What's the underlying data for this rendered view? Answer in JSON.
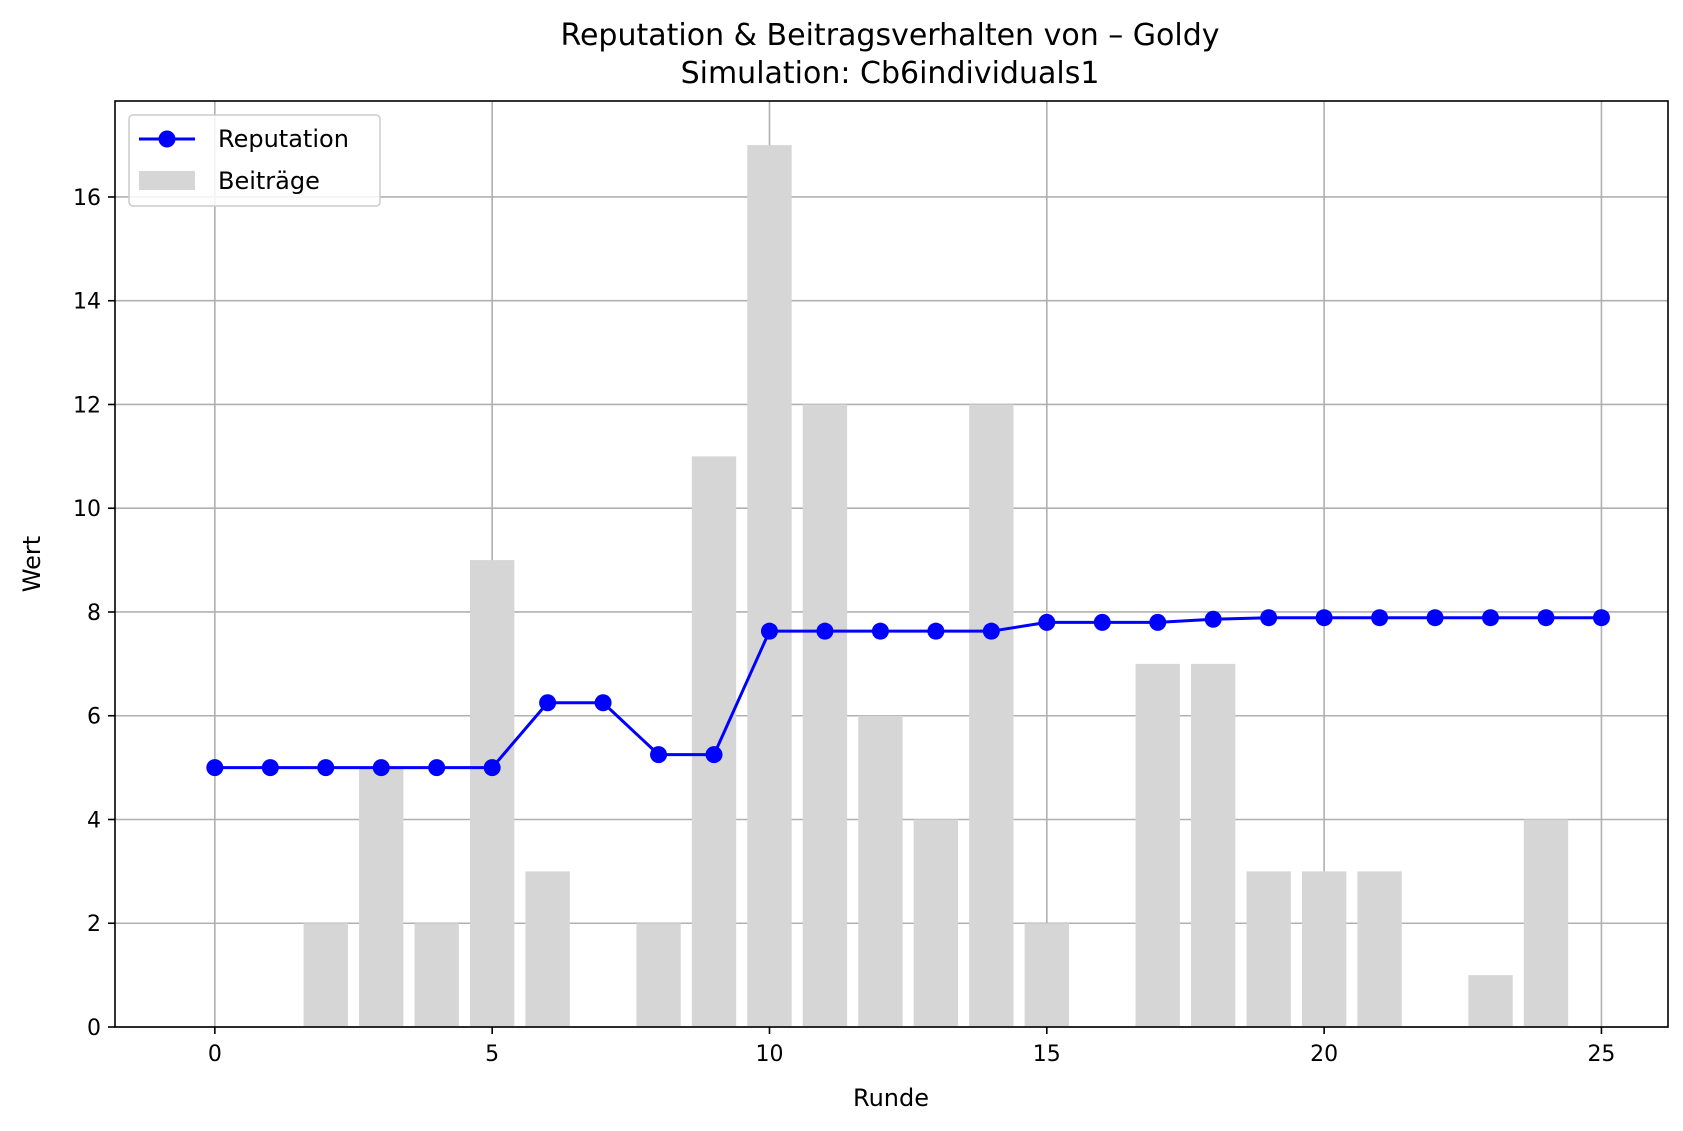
{
  "chart_data": {
    "type": "bar+line",
    "title": "Reputation & Beitragsverhalten von – Goldy",
    "subtitle": "Simulation: Cb6individuals1",
    "xlabel": "Runde",
    "ylabel": "Wert",
    "xlim": [
      -1.8,
      26.2
    ],
    "ylim": [
      0,
      17.85
    ],
    "x_ticks": [
      0,
      5,
      10,
      15,
      20,
      25
    ],
    "y_ticks": [
      0,
      2,
      4,
      6,
      8,
      10,
      12,
      14,
      16
    ],
    "grid": true,
    "legend_position": "upper-left",
    "x": [
      0,
      1,
      2,
      3,
      4,
      5,
      6,
      7,
      8,
      9,
      10,
      11,
      12,
      13,
      14,
      15,
      16,
      17,
      18,
      19,
      20,
      21,
      22,
      23,
      24,
      25
    ],
    "series": [
      {
        "name": "Reputation",
        "type": "line",
        "marker": "circle",
        "color": "#0000ff",
        "values": [
          5.0,
          5.0,
          5.0,
          5.0,
          5.0,
          5.0,
          6.25,
          6.25,
          5.25,
          5.25,
          7.63,
          7.63,
          7.63,
          7.63,
          7.63,
          7.8,
          7.8,
          7.8,
          7.86,
          7.89,
          7.89,
          7.89,
          7.89,
          7.89,
          7.89,
          7.89
        ]
      },
      {
        "name": "Beiträge",
        "type": "bar",
        "color": "#d6d6d6",
        "values": [
          0,
          0,
          2,
          5,
          2,
          9,
          3,
          0,
          2,
          11,
          17,
          12,
          6,
          4,
          12,
          2,
          0,
          7,
          7,
          3,
          3,
          3,
          0,
          1,
          4,
          0
        ]
      }
    ]
  }
}
